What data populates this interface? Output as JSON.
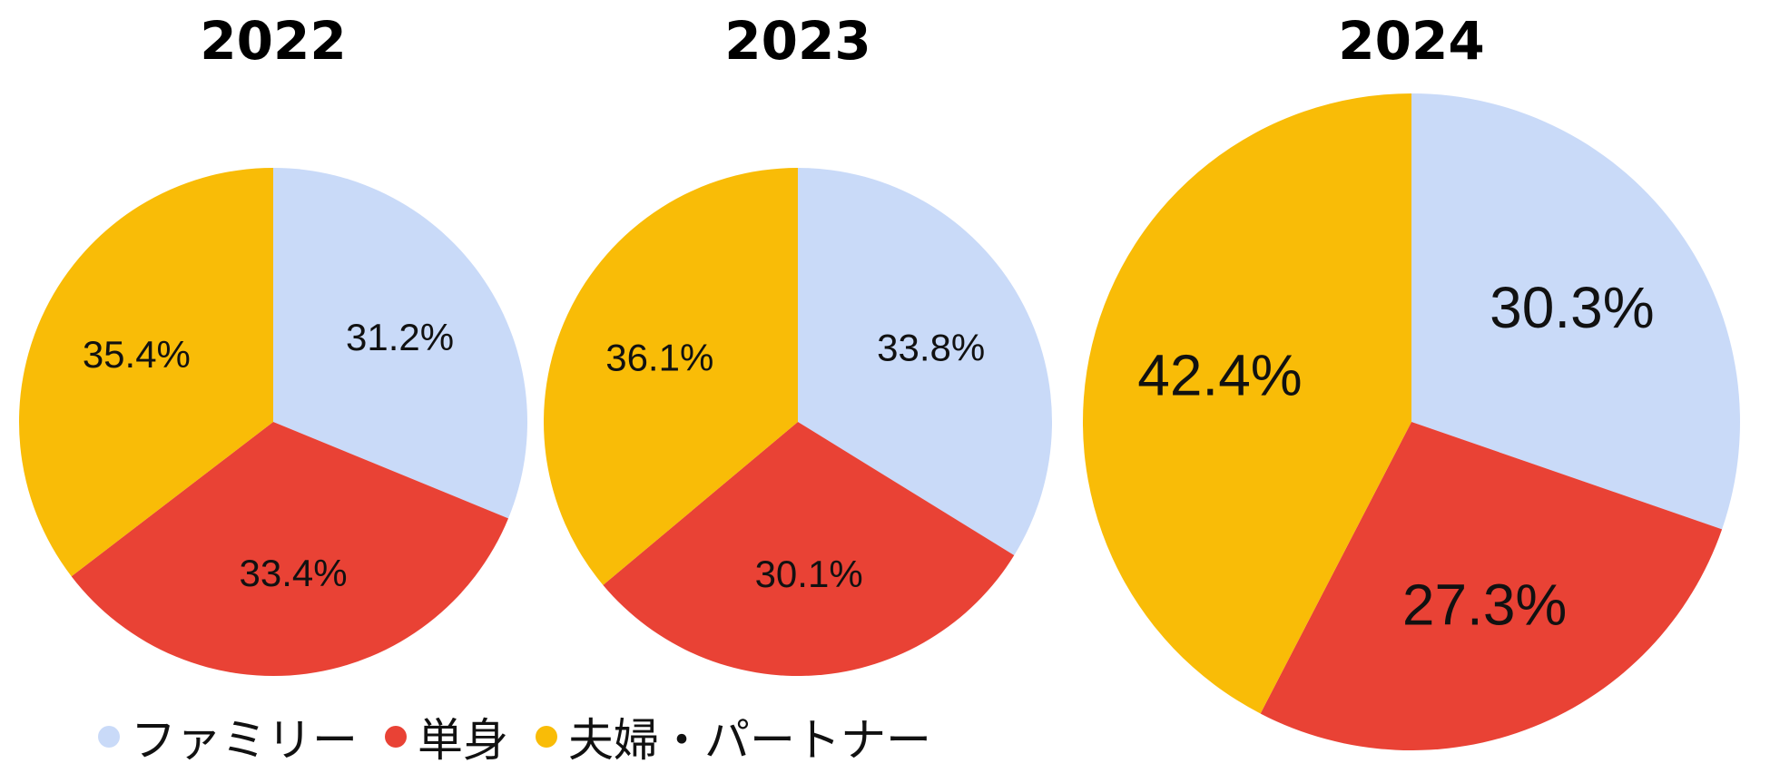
{
  "legend": [
    {
      "label": "ファミリー",
      "color": "#c9daf8"
    },
    {
      "label": "単身",
      "color": "#e94235"
    },
    {
      "label": "夫婦・パートナー",
      "color": "#f9bc07"
    }
  ],
  "chart_data": [
    {
      "type": "pie",
      "title": "2022",
      "slices": [
        {
          "name": "ファミリー",
          "value": 31.2,
          "label": "31.2%"
        },
        {
          "name": "単身",
          "value": 33.4,
          "label": "33.4%"
        },
        {
          "name": "夫婦・パートナー",
          "value": 35.4,
          "label": "35.4%"
        }
      ]
    },
    {
      "type": "pie",
      "title": "2023",
      "slices": [
        {
          "name": "ファミリー",
          "value": 33.8,
          "label": "33.8%"
        },
        {
          "name": "単身",
          "value": 30.1,
          "label": "30.1%"
        },
        {
          "name": "夫婦・パートナー",
          "value": 36.1,
          "label": "36.1%"
        }
      ]
    },
    {
      "type": "pie",
      "title": "2024",
      "slices": [
        {
          "name": "ファミリー",
          "value": 30.3,
          "label": "30.3%"
        },
        {
          "name": "単身",
          "value": 27.3,
          "label": "27.3%"
        },
        {
          "name": "夫婦・パートナー",
          "value": 42.4,
          "label": "42.4%"
        }
      ]
    }
  ]
}
